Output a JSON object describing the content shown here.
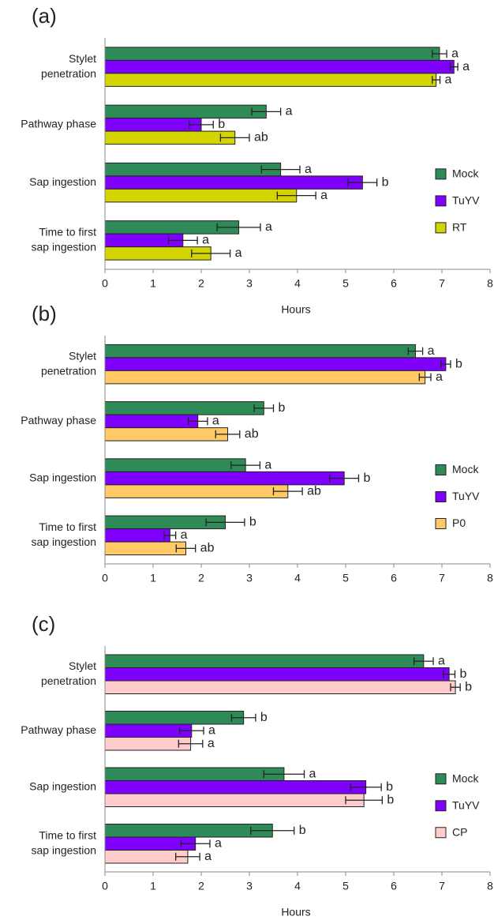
{
  "chart_data": [
    {
      "type": "bar",
      "label": "(a)",
      "x_label": "Hours",
      "categories": [
        [
          "Stylet",
          "penetration"
        ],
        [
          "Pathway phase"
        ],
        [
          "Sap ingestion"
        ],
        [
          "Time to first",
          "sap ingestion"
        ]
      ],
      "xlim": [
        0,
        8
      ],
      "xticks": [
        0,
        1,
        2,
        3,
        4,
        5,
        6,
        7,
        8
      ],
      "series": [
        {
          "name": "Mock",
          "color": "#2e8b57",
          "values": [
            6.95,
            3.35,
            3.65,
            2.78
          ],
          "errors": [
            0.15,
            0.3,
            0.4,
            0.45
          ],
          "letters": [
            "a",
            "a",
            "a",
            "a"
          ]
        },
        {
          "name": "TuYV",
          "color": "#7f00ff",
          "values": [
            7.25,
            2.0,
            5.35,
            1.62
          ],
          "errors": [
            0.08,
            0.25,
            0.3,
            0.3
          ],
          "letters": [
            "a",
            "b",
            "b",
            "a"
          ]
        },
        {
          "name": "RT",
          "color": "#d4d400",
          "values": [
            6.88,
            2.7,
            3.98,
            2.2
          ],
          "errors": [
            0.08,
            0.3,
            0.4,
            0.4
          ],
          "letters": [
            "a",
            "ab",
            "a",
            "a"
          ]
        }
      ]
    },
    {
      "type": "bar",
      "label": "(b)",
      "categories": [
        [
          "Stylet",
          "penetration"
        ],
        [
          "Pathway phase"
        ],
        [
          "Sap ingestion"
        ],
        [
          "Time to first",
          "sap ingestion"
        ]
      ],
      "xlim": [
        0,
        8
      ],
      "xticks": [
        0,
        1,
        2,
        3,
        4,
        5,
        6,
        7,
        8
      ],
      "series": [
        {
          "name": "Mock",
          "color": "#2e8b57",
          "values": [
            6.45,
            3.3,
            2.92,
            2.5
          ],
          "errors": [
            0.15,
            0.2,
            0.3,
            0.4
          ],
          "letters": [
            "a",
            "b",
            "a",
            "b"
          ]
        },
        {
          "name": "TuYV",
          "color": "#7f00ff",
          "values": [
            7.08,
            1.93,
            4.97,
            1.35
          ],
          "errors": [
            0.1,
            0.2,
            0.3,
            0.12
          ],
          "letters": [
            "b",
            "a",
            "b",
            "a"
          ]
        },
        {
          "name": "P0",
          "color": "#ffc966",
          "values": [
            6.65,
            2.55,
            3.8,
            1.68
          ],
          "errors": [
            0.12,
            0.25,
            0.3,
            0.2
          ],
          "letters": [
            "a",
            "ab",
            "ab",
            "ab"
          ]
        }
      ]
    },
    {
      "type": "bar",
      "label": "(c)",
      "x_label": "Hours",
      "categories": [
        [
          "Stylet",
          "penetration"
        ],
        [
          "Pathway phase"
        ],
        [
          "Sap ingestion"
        ],
        [
          "Time to first",
          "sap ingestion"
        ]
      ],
      "xlim": [
        0,
        8
      ],
      "xticks": [
        0,
        1,
        2,
        3,
        4,
        5,
        6,
        7,
        8
      ],
      "series": [
        {
          "name": "Mock",
          "color": "#2e8b57",
          "values": [
            6.62,
            2.88,
            3.72,
            3.48
          ],
          "errors": [
            0.2,
            0.25,
            0.42,
            0.45
          ],
          "letters": [
            "a",
            "b",
            "a",
            "b"
          ]
        },
        {
          "name": "TuYV",
          "color": "#7f00ff",
          "values": [
            7.15,
            1.8,
            5.42,
            1.88
          ],
          "errors": [
            0.12,
            0.25,
            0.32,
            0.3
          ],
          "letters": [
            "b",
            "a",
            "b",
            "a"
          ]
        },
        {
          "name": "CP",
          "color": "#ffcccc",
          "values": [
            7.28,
            1.78,
            5.38,
            1.72
          ],
          "errors": [
            0.1,
            0.25,
            0.38,
            0.25
          ],
          "letters": [
            "b",
            "a",
            "b",
            "a"
          ]
        }
      ]
    }
  ]
}
